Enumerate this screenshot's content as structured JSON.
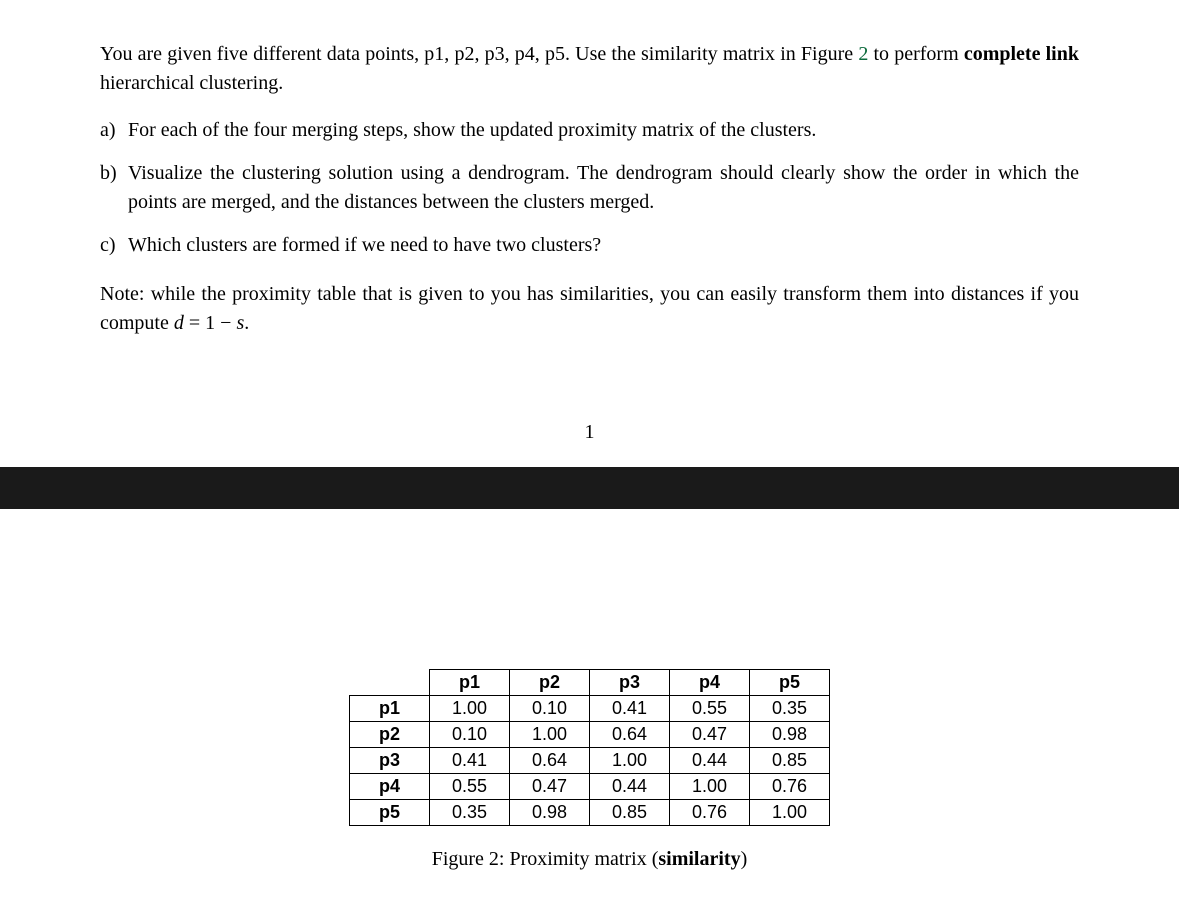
{
  "intro": {
    "line1_prefix": "You are given five different data points, p1, p2, p3, p4, p5.  Use the similarity matrix in Figure ",
    "fig_ref": "2",
    "line1_suffix": " to perform ",
    "bold_phrase": "complete link",
    "line1_end": " hierarchical clustering."
  },
  "questions": {
    "a": {
      "marker": "a)",
      "text": "For each of the four merging steps, show the updated proximity matrix of the clusters."
    },
    "b": {
      "marker": "b)",
      "text": "Visualize the clustering solution using a dendrogram.  The dendrogram should clearly show the order in which the points are merged, and the distances between the clusters merged."
    },
    "c": {
      "marker": "c)",
      "text": "Which clusters are formed if we need to have two clusters?"
    }
  },
  "note": {
    "prefix": "Note: while the proximity table that is given to you has similarities, you can easily transform them into distances if you compute ",
    "formula_d": "d",
    "formula_eq": " = 1 − ",
    "formula_s": "s",
    "suffix": "."
  },
  "page_number": "1",
  "table": {
    "headers": [
      "p1",
      "p2",
      "p3",
      "p4",
      "p5"
    ],
    "rows": [
      {
        "label": "p1",
        "cells": [
          "1.00",
          "0.10",
          "0.41",
          "0.55",
          "0.35"
        ]
      },
      {
        "label": "p2",
        "cells": [
          "0.10",
          "1.00",
          "0.64",
          "0.47",
          "0.98"
        ]
      },
      {
        "label": "p3",
        "cells": [
          "0.41",
          "0.64",
          "1.00",
          "0.44",
          "0.85"
        ]
      },
      {
        "label": "p4",
        "cells": [
          "0.55",
          "0.47",
          "0.44",
          "1.00",
          "0.76"
        ]
      },
      {
        "label": "p5",
        "cells": [
          "0.35",
          "0.98",
          "0.85",
          "0.76",
          "1.00"
        ]
      }
    ]
  },
  "caption": {
    "prefix": "Figure 2: Proximity matrix (",
    "bold": "similarity",
    "suffix": ")"
  }
}
